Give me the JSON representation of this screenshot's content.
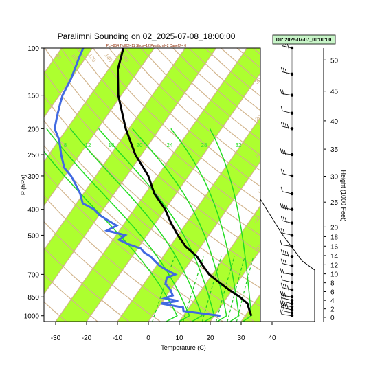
{
  "title": "Paralimni Sounding on 02_2025-07-08_18:00:00",
  "subtitle": "Pcl=854 Tlcl[C]=11 Shox=12 Pwat[cm]=2 Cape[J]= 0",
  "dt_box": "DT: 2025-07-07_00:00:00",
  "colors": {
    "temperature": "#000000",
    "dewpoint": "#4169e1",
    "band": "#adff2f",
    "isotherm_adiabat": "#d2b48c",
    "moist_adiabat": "#22dd22",
    "mixing_ratio": "#22cc22"
  },
  "chart_data": {
    "type": "skew-t",
    "xlabel": "Temperature (C)",
    "ylabel": "P (hPa)",
    "y2label": "Height (1000 Feet)",
    "temp_ticks": [
      "-30",
      "-20",
      "-10",
      "0",
      "10",
      "20",
      "30",
      "40"
    ],
    "temp_tick_values": [
      -30,
      -20,
      -10,
      0,
      10,
      20,
      30,
      40
    ],
    "pressure_ticks": [
      "100",
      "150",
      "200",
      "250",
      "300",
      "400",
      "500",
      "700",
      "850",
      "1000"
    ],
    "pressure_tick_values": [
      100,
      150,
      200,
      250,
      300,
      400,
      500,
      700,
      850,
      1000
    ],
    "height_ticks": [
      "0",
      "2",
      "4",
      "6",
      "8",
      "10",
      "12",
      "14",
      "16",
      "18",
      "20",
      "25",
      "30",
      "35",
      "40",
      "45",
      "50"
    ],
    "height_tick_values": [
      0,
      2,
      4,
      6,
      8,
      10,
      12,
      14,
      16,
      18,
      20,
      25,
      30,
      35,
      40,
      45,
      50
    ],
    "mixing_ratio_labels": [
      "8",
      "12",
      "16",
      "20",
      "24",
      "28",
      "32"
    ],
    "moist_adiabat_labels": [
      "8",
      "12",
      "16",
      "20",
      "24",
      "28",
      "32"
    ],
    "adiabat_labels_top": [
      "80",
      "100",
      "120",
      "140",
      "160"
    ],
    "adiabat_labels_right": [
      "30",
      "20",
      "10",
      "0",
      "-10",
      "-20"
    ],
    "temperature": {
      "p": [
        1000,
        950,
        925,
        900,
        850,
        800,
        750,
        700,
        650,
        600,
        550,
        500,
        450,
        400,
        350,
        300,
        250,
        200,
        150,
        120,
        100
      ],
      "t": [
        32,
        30,
        29,
        28,
        24,
        19,
        14,
        9,
        5,
        1,
        -5,
        -10,
        -15,
        -20,
        -27,
        -33,
        -42,
        -51,
        -61,
        -67,
        -70
      ]
    },
    "dewpoint": {
      "p": [
        1000,
        960,
        930,
        900,
        880,
        860,
        840,
        800,
        760,
        720,
        700,
        680,
        650,
        620,
        600,
        580,
        560,
        540,
        520,
        500,
        480,
        460,
        440,
        420,
        400,
        380,
        350,
        320,
        300,
        280,
        250,
        220,
        200,
        180,
        160,
        150,
        130,
        110,
        100
      ],
      "t": [
        22,
        9,
        8,
        0,
        5,
        0,
        2,
        0,
        -3,
        -4,
        -2,
        -5,
        -9,
        -12,
        -14,
        -17,
        -19,
        -24,
        -28,
        -27,
        -34,
        -32,
        -36,
        -40,
        -43,
        -48,
        -51,
        -55,
        -58,
        -62,
        -66,
        -70,
        -74,
        -76,
        -78,
        -79,
        -80,
        -82,
        -83
      ]
    },
    "surface_pressure": 1000
  }
}
